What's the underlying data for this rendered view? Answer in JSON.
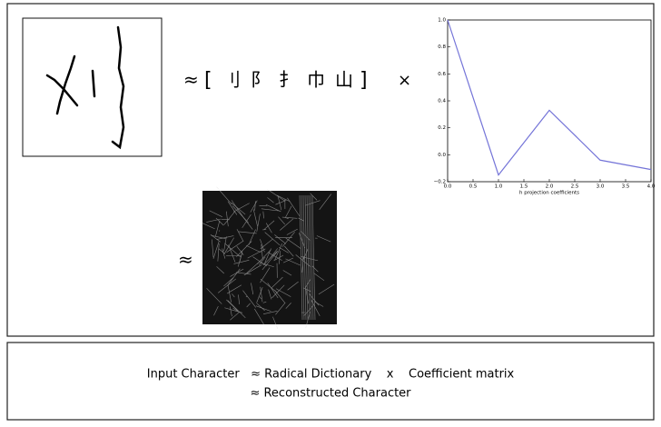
{
  "equation": {
    "approx_1": "≈",
    "open_bracket": "[",
    "dictionary": [
      "刂",
      "阝",
      "扌",
      "巾",
      "山"
    ],
    "close_bracket": "]",
    "times": "×",
    "approx_2": "≈"
  },
  "chart_data": {
    "type": "line",
    "x": [
      0,
      1,
      2,
      3,
      4
    ],
    "values": [
      1.0,
      -0.15,
      0.33,
      -0.04,
      -0.11
    ],
    "color": "#7474d8",
    "xlabel": "h projection coefficients",
    "xlim": [
      0,
      4
    ],
    "ylim": [
      -0.2,
      1.0
    ],
    "xticks": [
      {
        "value": 0,
        "label": "0.0"
      },
      {
        "value": 0.5,
        "label": "0.5"
      },
      {
        "value": 1,
        "label": "1.0"
      },
      {
        "value": 1.5,
        "label": "1.5"
      },
      {
        "value": 2,
        "label": "2.0"
      },
      {
        "value": 2.5,
        "label": "2.5"
      },
      {
        "value": 3,
        "label": "3.0"
      },
      {
        "value": 3.5,
        "label": "3.5"
      },
      {
        "value": 4,
        "label": "4.0"
      }
    ],
    "yticks": [
      {
        "value": -0.2,
        "label": "−0.2"
      },
      {
        "value": 0,
        "label": "0.0"
      },
      0.2,
      0.4,
      0.6,
      0.8,
      {
        "value": 1,
        "label": "1.0"
      }
    ]
  },
  "caption": {
    "line1": "Input Character   ≈ Radical Dictionary    x    Coefficient matrix",
    "line2": "≈ Reconstructed Character"
  }
}
